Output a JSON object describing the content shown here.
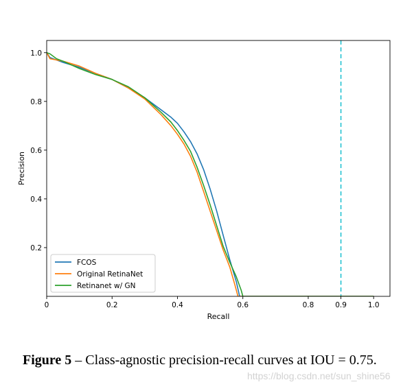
{
  "chart_data": {
    "type": "line",
    "title": "",
    "xlabel": "Recall",
    "ylabel": "Precision",
    "xlim": [
      0,
      1.05
    ],
    "ylim": [
      0,
      1.05
    ],
    "x_ticks": [
      0,
      0.2,
      0.4,
      0.6,
      0.8,
      0.9,
      1.0
    ],
    "x_tick_labels": [
      "0",
      "0.2",
      "0.4",
      "0.6",
      "0.8",
      "0.9",
      "1.0"
    ],
    "y_ticks": [
      0.2,
      0.4,
      0.6,
      0.8,
      1.0
    ],
    "y_tick_labels": [
      "0.2",
      "0.4",
      "0.6",
      "0.8",
      "1.0"
    ],
    "grid": false,
    "legend_position": "lower-left",
    "vline": {
      "x": 0.9,
      "color": "#17becf",
      "style": "dashed"
    },
    "series": [
      {
        "name": "FCOS",
        "color": "#1f77b4",
        "x": [
          0.0,
          0.01,
          0.05,
          0.1,
          0.15,
          0.2,
          0.25,
          0.3,
          0.35,
          0.38,
          0.4,
          0.42,
          0.44,
          0.46,
          0.48,
          0.5,
          0.52,
          0.54,
          0.56,
          0.58,
          0.59,
          1.0
        ],
        "y": [
          1.0,
          0.98,
          0.96,
          0.94,
          0.915,
          0.89,
          0.855,
          0.815,
          0.765,
          0.735,
          0.71,
          0.675,
          0.635,
          0.585,
          0.52,
          0.44,
          0.35,
          0.25,
          0.15,
          0.06,
          0.0,
          0.0
        ]
      },
      {
        "name": "Original RetinaNet",
        "color": "#ff7f0e",
        "x": [
          0.0,
          0.01,
          0.05,
          0.1,
          0.15,
          0.2,
          0.25,
          0.3,
          0.35,
          0.38,
          0.4,
          0.42,
          0.44,
          0.46,
          0.48,
          0.5,
          0.52,
          0.54,
          0.56,
          0.575,
          0.585,
          1.0
        ],
        "y": [
          1.0,
          0.975,
          0.965,
          0.945,
          0.915,
          0.89,
          0.855,
          0.81,
          0.745,
          0.7,
          0.665,
          0.625,
          0.575,
          0.51,
          0.43,
          0.35,
          0.27,
          0.19,
          0.12,
          0.05,
          0.0,
          0.0
        ]
      },
      {
        "name": "Retinanet w/ GN",
        "color": "#2ca02c",
        "x": [
          0.0,
          0.01,
          0.03,
          0.05,
          0.1,
          0.15,
          0.2,
          0.25,
          0.3,
          0.35,
          0.38,
          0.4,
          0.42,
          0.44,
          0.46,
          0.48,
          0.5,
          0.52,
          0.54,
          0.56,
          0.58,
          0.595,
          0.6,
          1.0
        ],
        "y": [
          1.0,
          0.995,
          0.975,
          0.965,
          0.935,
          0.91,
          0.89,
          0.86,
          0.815,
          0.755,
          0.715,
          0.68,
          0.64,
          0.595,
          0.53,
          0.455,
          0.375,
          0.29,
          0.205,
          0.14,
          0.08,
          0.025,
          0.0,
          0.0
        ]
      }
    ]
  },
  "caption": {
    "label": "Figure 5",
    "text": " – Class-agnostic precision-recall curves at IOU = 0.75."
  },
  "watermark": "https://blog.csdn.net/sun_shine56"
}
